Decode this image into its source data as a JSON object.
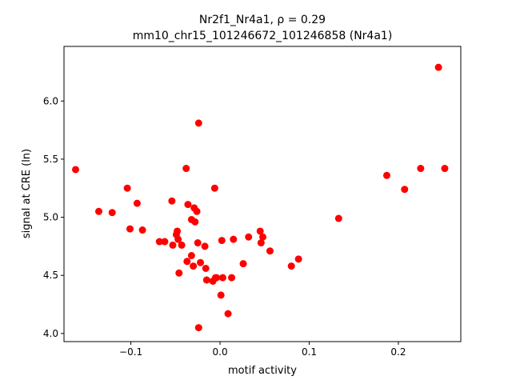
{
  "chart_data": {
    "type": "scatter",
    "title_line1": "Nr2f1_Nr4a1, ρ = 0.29",
    "title_line2": "mm10_chr15_101246672_101246858 (Nr4a1)",
    "xlabel": "motif activity",
    "ylabel": "signal at CRE (ln)",
    "xlim": [
      -0.175,
      0.27
    ],
    "ylim": [
      3.93,
      6.47
    ],
    "xticks": [
      -0.1,
      0.0,
      0.1,
      0.2
    ],
    "xtick_labels": [
      "−0.1",
      "0.0",
      "0.1",
      "0.2"
    ],
    "yticks": [
      4.0,
      4.5,
      5.0,
      5.5,
      6.0
    ],
    "ytick_labels": [
      "4.0",
      "4.5",
      "5.0",
      "5.5",
      "6.0"
    ],
    "marker_color": "#ff0000",
    "grid": false,
    "points": [
      [
        -0.162,
        5.41
      ],
      [
        -0.136,
        5.05
      ],
      [
        -0.121,
        5.04
      ],
      [
        -0.104,
        5.25
      ],
      [
        -0.101,
        4.9
      ],
      [
        -0.093,
        5.12
      ],
      [
        -0.087,
        4.89
      ],
      [
        -0.068,
        4.79
      ],
      [
        -0.062,
        4.79
      ],
      [
        -0.054,
        5.14
      ],
      [
        -0.053,
        4.76
      ],
      [
        -0.049,
        4.85
      ],
      [
        -0.048,
        4.88
      ],
      [
        -0.047,
        4.81
      ],
      [
        -0.046,
        4.52
      ],
      [
        -0.043,
        4.76
      ],
      [
        -0.038,
        5.42
      ],
      [
        -0.037,
        4.62
      ],
      [
        -0.036,
        5.11
      ],
      [
        -0.032,
        4.98
      ],
      [
        -0.032,
        4.67
      ],
      [
        -0.03,
        4.58
      ],
      [
        -0.029,
        5.08
      ],
      [
        -0.028,
        4.96
      ],
      [
        -0.026,
        5.05
      ],
      [
        -0.025,
        4.78
      ],
      [
        -0.024,
        5.81
      ],
      [
        -0.024,
        4.05
      ],
      [
        -0.022,
        4.61
      ],
      [
        -0.017,
        4.75
      ],
      [
        -0.016,
        4.56
      ],
      [
        -0.015,
        4.46
      ],
      [
        -0.008,
        4.45
      ],
      [
        -0.006,
        5.25
      ],
      [
        -0.005,
        4.48
      ],
      [
        -0.004,
        4.48
      ],
      [
        0.001,
        4.33
      ],
      [
        0.002,
        4.8
      ],
      [
        0.003,
        4.48
      ],
      [
        0.009,
        4.17
      ],
      [
        0.013,
        4.48
      ],
      [
        0.015,
        4.81
      ],
      [
        0.026,
        4.6
      ],
      [
        0.032,
        4.83
      ],
      [
        0.045,
        4.88
      ],
      [
        0.046,
        4.78
      ],
      [
        0.048,
        4.83
      ],
      [
        0.056,
        4.71
      ],
      [
        0.08,
        4.58
      ],
      [
        0.088,
        4.64
      ],
      [
        0.133,
        4.99
      ],
      [
        0.187,
        5.36
      ],
      [
        0.207,
        5.24
      ],
      [
        0.225,
        5.42
      ],
      [
        0.245,
        6.29
      ],
      [
        0.252,
        5.42
      ]
    ]
  }
}
